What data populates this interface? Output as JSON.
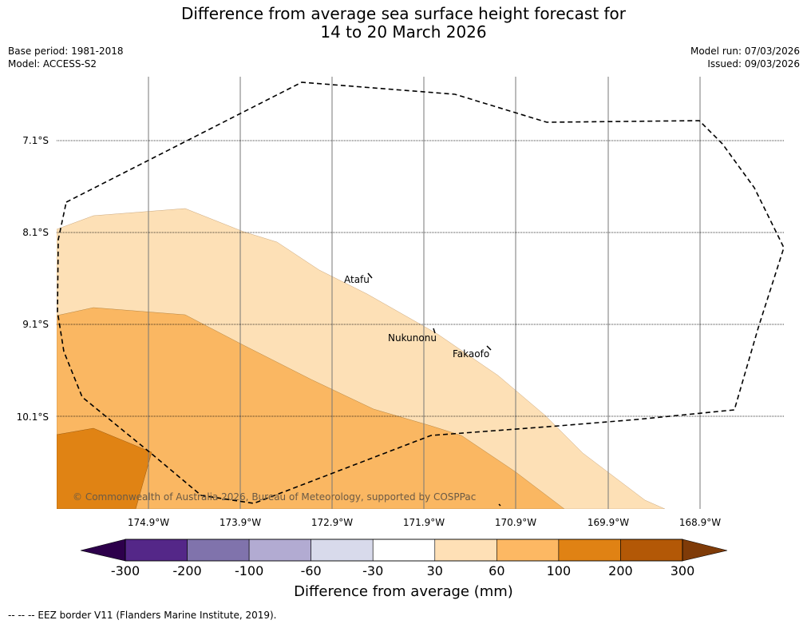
{
  "title_line1": "Difference from average sea surface height forecast for",
  "title_line2": "14 to 20 March 2026",
  "base_period": "Base period: 1981-2018",
  "model": "Model: ACCESS-S2",
  "model_run": "Model run: 07/03/2026",
  "issued": "Issued: 09/03/2026",
  "copyright": "© Commonwealth of Australia 2026, Bureau of Meteorology, supported by COSPPac",
  "lat_labels": [
    "7.1°S",
    "8.1°S",
    "9.1°S",
    "10.1°S"
  ],
  "lon_labels": [
    "174.9°W",
    "173.9°W",
    "172.9°W",
    "171.9°W",
    "170.9°W",
    "169.9°W",
    "168.9°W"
  ],
  "places": [
    {
      "name": "Atafu"
    },
    {
      "name": "Nukunonu"
    },
    {
      "name": "Fakaofo"
    }
  ],
  "colorbar": {
    "ticks": [
      "-300",
      "-200",
      "-100",
      "-60",
      "-30",
      "30",
      "60",
      "100",
      "200",
      "300"
    ],
    "colors": [
      "#2d004b",
      "#542788",
      "#8073ac",
      "#b2abd2",
      "#d8daeb",
      "#ffffff",
      "#fee0b6",
      "#fdb863",
      "#e08214",
      "#b35806",
      "#7f3b08"
    ],
    "label": "Difference from average (mm)"
  },
  "legend_note": "--  --  -- EEZ border V11 (Flanders Marine Institute, 2019)."
}
